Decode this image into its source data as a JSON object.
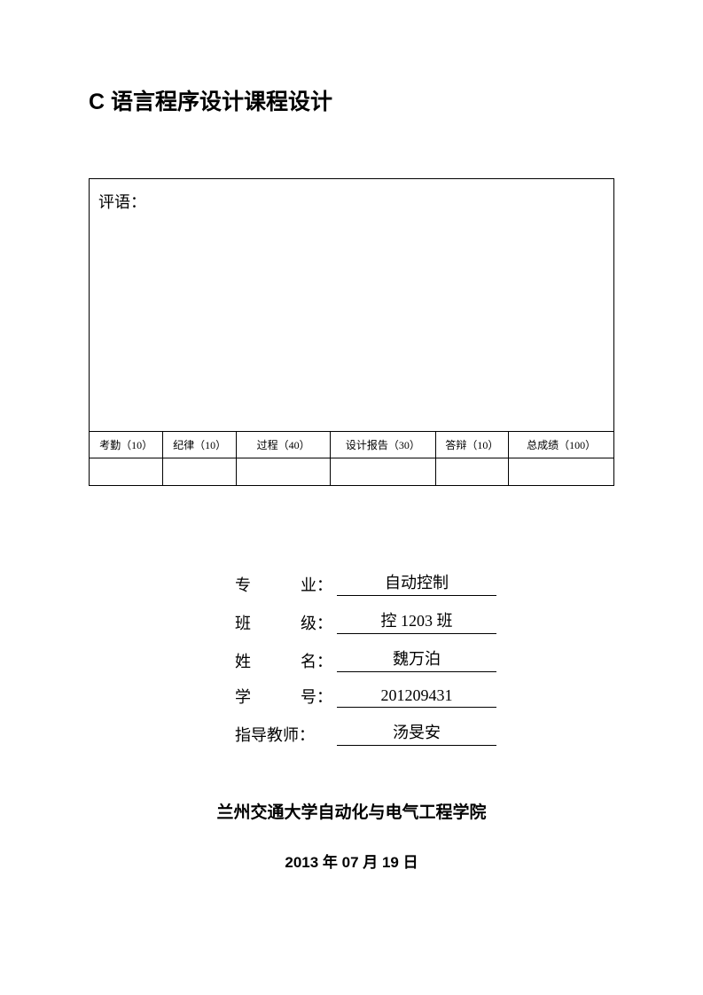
{
  "title": "C 语言程序设计课程设计",
  "comment_label": "评语：",
  "score_table": {
    "columns": [
      "考勤（10）",
      "纪律（10）",
      "过程（40）",
      "设计报告（30）",
      "答辩（10）",
      "总成绩（100）"
    ],
    "column_widths": [
      "14%",
      "14%",
      "18%",
      "20%",
      "14%",
      "20%"
    ],
    "values": [
      "",
      "",
      "",
      "",
      "",
      ""
    ]
  },
  "info": {
    "rows": [
      {
        "label_chars": [
          "专",
          "业："
        ],
        "value": "自动控制"
      },
      {
        "label_chars": [
          "班",
          "级："
        ],
        "value": "控 1203 班"
      },
      {
        "label_chars": [
          "姓",
          "名："
        ],
        "value": "魏万泊"
      },
      {
        "label_chars": [
          "学",
          "号："
        ],
        "value": "201209431"
      },
      {
        "label_chars": [
          "指导教师："
        ],
        "value": "汤旻安"
      }
    ]
  },
  "school": "兰州交通大学自动化与电气工程学院",
  "date": "2013 年 07 月 19 日"
}
